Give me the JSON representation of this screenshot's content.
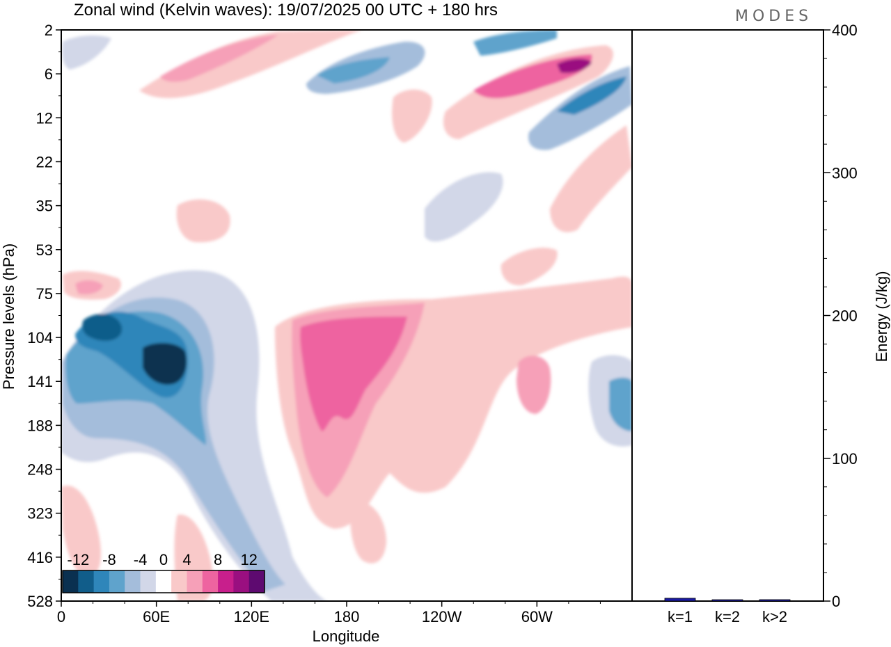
{
  "brand": "MODES",
  "chart_data": [
    {
      "type": "heatmap",
      "title": "Zonal wind (Kelvin waves):  19/07/2025  00 UTC  + 180 hrs",
      "xlabel": "Longitude",
      "ylabel": "Pressure levels (hPa)",
      "x_ticks": [
        "0",
        "60E",
        "120E",
        "180",
        "120W",
        "60W"
      ],
      "y_ticks": [
        "2",
        "6",
        "12",
        "22",
        "35",
        "53",
        "75",
        "104",
        "141",
        "188",
        "248",
        "323",
        "416",
        "528"
      ],
      "colorbar": {
        "tick_labels": [
          "-12",
          "-8",
          "-4",
          "0",
          "4",
          "8",
          "12"
        ],
        "levels": [
          -14,
          -12,
          -10,
          -8,
          -6,
          -4,
          -2,
          2,
          4,
          6,
          8,
          10,
          12,
          14
        ],
        "colors": [
          "#0a3050",
          "#115d8a",
          "#2f86ba",
          "#5fa3cc",
          "#a4bddb",
          "#d2d7e8",
          "#ffffff",
          "#f9c9c9",
          "#f6a0b8",
          "#ee64a0",
          "#c81f8c",
          "#9a0f80",
          "#5e0a70"
        ]
      },
      "features": [
        {
          "label": "upper positive band",
          "value": 8
        },
        {
          "label": "upper negative band",
          "value": -8
        },
        {
          "label": "lower negative anomaly 60E",
          "value": -14
        },
        {
          "label": "lower positive anomaly 180",
          "value": 8
        }
      ]
    },
    {
      "type": "bar",
      "ylabel": "Energy (J/kg)",
      "ylim": [
        0,
        400
      ],
      "y_ticks": [
        "0",
        "100",
        "200",
        "300",
        "400"
      ],
      "categories": [
        "k=1",
        "k=2",
        "k>2"
      ],
      "values": [
        2,
        0.5,
        1
      ]
    }
  ]
}
